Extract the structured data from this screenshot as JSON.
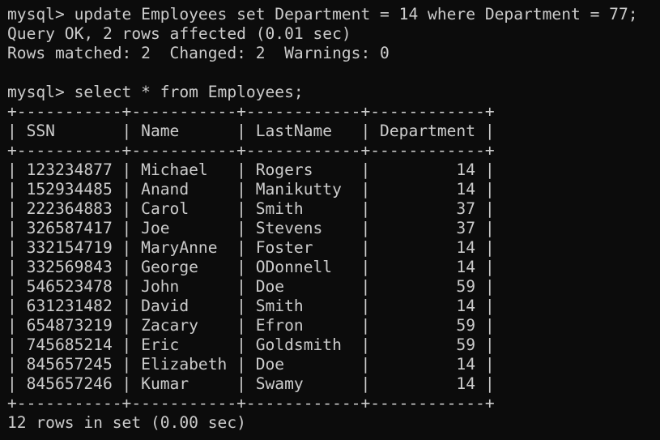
{
  "terminal": {
    "background": "#0c0c0c",
    "foreground": "#cccccc",
    "lines": [
      "mysql> update Employees set Department = 14 where Department = 77;",
      "Query OK, 2 rows affected (0.01 sec)",
      "Rows matched: 2  Changed: 2  Warnings: 0",
      "",
      "mysql> select * from Employees;",
      "+-----------+-----------+------------+------------+",
      "| SSN       | Name      | LastName   | Department |",
      "+-----------+-----------+------------+------------+",
      "| 123234877 | Michael   | Rogers     |         14 |",
      "| 152934485 | Anand     | Manikutty  |         14 |",
      "| 222364883 | Carol     | Smith      |         37 |",
      "| 326587417 | Joe       | Stevens    |         37 |",
      "| 332154719 | MaryAnne  | Foster     |         14 |",
      "| 332569843 | George    | ODonnell   |         14 |",
      "| 546523478 | John      | Doe        |         59 |",
      "| 631231482 | David     | Smith      |         14 |",
      "| 654873219 | Zacary    | Efron      |         59 |",
      "| 745685214 | Eric      | Goldsmith  |         59 |",
      "| 845657245 | Elizabeth | Doe        |         14 |",
      "| 845657246 | Kumar     | Swamy      |         14 |",
      "+-----------+-----------+------------+------------+",
      "12 rows in set (0.00 sec)"
    ]
  }
}
